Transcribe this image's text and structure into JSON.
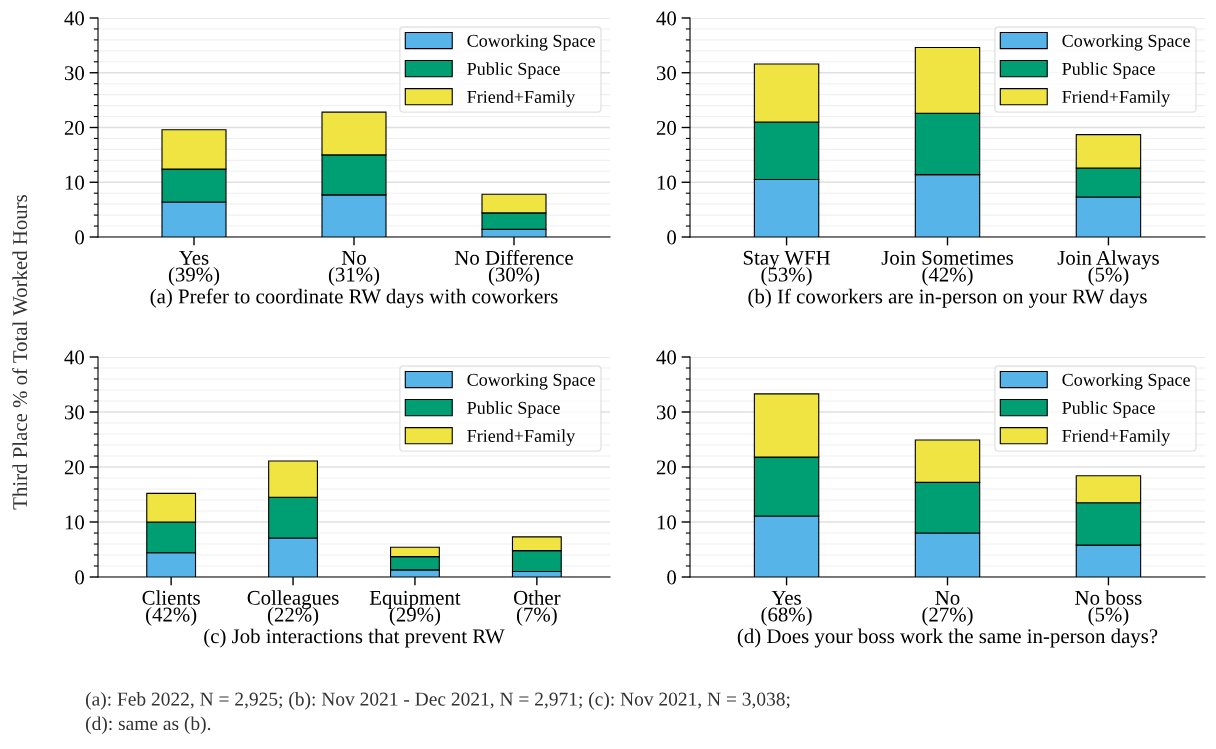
{
  "chart_data": [
    {
      "type": "bar",
      "stacked": true,
      "xlabel": "(a) Prefer to coordinate RW days with coworkers",
      "ylabel": "Third Place % of Total Worked Hours",
      "categories": [
        "Yes\n(39%)",
        "No\n(31%)",
        "No Difference\n(30%)"
      ],
      "ylim": [
        0,
        40
      ],
      "yticks": [
        0,
        10,
        20,
        30,
        40
      ],
      "grid": "y",
      "legend": "top right",
      "series": [
        {
          "name": "Coworking Space",
          "color": "#56b4e9",
          "values": [
            6.4,
            7.7,
            1.4
          ]
        },
        {
          "name": "Public Space",
          "color": "#009e73",
          "values": [
            6.0,
            7.3,
            3.0
          ]
        },
        {
          "name": "Friend+Family",
          "color": "#f0e442",
          "values": [
            7.2,
            7.8,
            3.4
          ]
        }
      ]
    },
    {
      "type": "bar",
      "stacked": true,
      "xlabel": "(b) If coworkers are in-person on your RW days",
      "categories": [
        "Stay WFH\n(53%)",
        "Join Sometimes\n(42%)",
        "Join Always\n(5%)"
      ],
      "ylim": [
        0,
        40
      ],
      "yticks": [
        0,
        10,
        20,
        30,
        40
      ],
      "grid": "y",
      "legend": "top right",
      "series": [
        {
          "name": "Coworking Space",
          "color": "#56b4e9",
          "values": [
            10.5,
            11.4,
            7.3
          ]
        },
        {
          "name": "Public Space",
          "color": "#009e73",
          "values": [
            10.5,
            11.2,
            5.3
          ]
        },
        {
          "name": "Friend+Family",
          "color": "#f0e442",
          "values": [
            10.6,
            12.0,
            6.1
          ]
        }
      ]
    },
    {
      "type": "bar",
      "stacked": true,
      "xlabel": "(c) Job interactions that prevent RW",
      "categories": [
        "Clients\n(42%)",
        "Colleagues\n(22%)",
        "Equipment\n(29%)",
        "Other\n(7%)"
      ],
      "ylim": [
        0,
        40
      ],
      "yticks": [
        0,
        10,
        20,
        30,
        40
      ],
      "grid": "y",
      "legend": "top right",
      "series": [
        {
          "name": "Coworking Space",
          "color": "#56b4e9",
          "values": [
            4.4,
            7.1,
            1.3,
            1.0
          ]
        },
        {
          "name": "Public Space",
          "color": "#009e73",
          "values": [
            5.6,
            7.4,
            2.4,
            3.8
          ]
        },
        {
          "name": "Friend+Family",
          "color": "#f0e442",
          "values": [
            5.2,
            6.6,
            1.7,
            2.5
          ]
        }
      ]
    },
    {
      "type": "bar",
      "stacked": true,
      "xlabel": "(d) Does your boss work the same in-person days?",
      "categories": [
        "Yes\n(68%)",
        "No\n(27%)",
        "No boss\n(5%)"
      ],
      "ylim": [
        0,
        40
      ],
      "yticks": [
        0,
        10,
        20,
        30,
        40
      ],
      "grid": "y",
      "legend": "top right",
      "annotations": [
        "(a): Feb 2022, N = 2,925; (b): Nov 2021 - Dec 2021, N = 2,971; (c): Nov 2021, N = 3,038;\n(d): same as (b)."
      ],
      "series": [
        {
          "name": "Coworking Space",
          "color": "#56b4e9",
          "values": [
            11.1,
            8.0,
            5.8
          ]
        },
        {
          "name": "Public Space",
          "color": "#009e73",
          "values": [
            10.7,
            9.2,
            7.7
          ]
        },
        {
          "name": "Friend+Family",
          "color": "#f0e442",
          "values": [
            11.5,
            7.7,
            4.9
          ]
        }
      ]
    }
  ]
}
